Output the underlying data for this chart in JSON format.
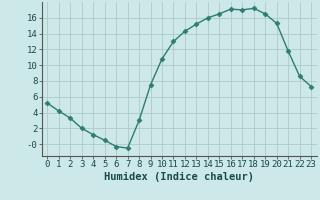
{
  "x": [
    0,
    1,
    2,
    3,
    4,
    5,
    6,
    7,
    8,
    9,
    10,
    11,
    12,
    13,
    14,
    15,
    16,
    17,
    18,
    19,
    20,
    21,
    22,
    23
  ],
  "y": [
    5.2,
    4.2,
    3.3,
    2.0,
    1.2,
    0.5,
    -0.3,
    -0.5,
    3.0,
    7.5,
    10.8,
    13.0,
    14.3,
    15.2,
    16.0,
    16.5,
    17.1,
    17.0,
    17.2,
    16.5,
    15.3,
    11.8,
    8.6,
    7.3
  ],
  "line_color": "#2e7d6e",
  "marker": "D",
  "marker_size": 2.5,
  "bg_color": "#cce8e8",
  "grid_color": "#b0c8c8",
  "xlabel": "Humidex (Indice chaleur)",
  "xlim": [
    -0.5,
    23.5
  ],
  "ylim": [
    -1.5,
    18
  ],
  "yticks": [
    0,
    2,
    4,
    6,
    8,
    10,
    12,
    14,
    16
  ],
  "ytick_labels": [
    "-0",
    "2",
    "4",
    "6",
    "8",
    "10",
    "12",
    "14",
    "16"
  ],
  "xticks": [
    0,
    1,
    2,
    3,
    4,
    5,
    6,
    7,
    8,
    9,
    10,
    11,
    12,
    13,
    14,
    15,
    16,
    17,
    18,
    19,
    20,
    21,
    22,
    23
  ],
  "tick_fontsize": 6.5,
  "label_fontsize": 7.5,
  "spine_color": "#555555"
}
